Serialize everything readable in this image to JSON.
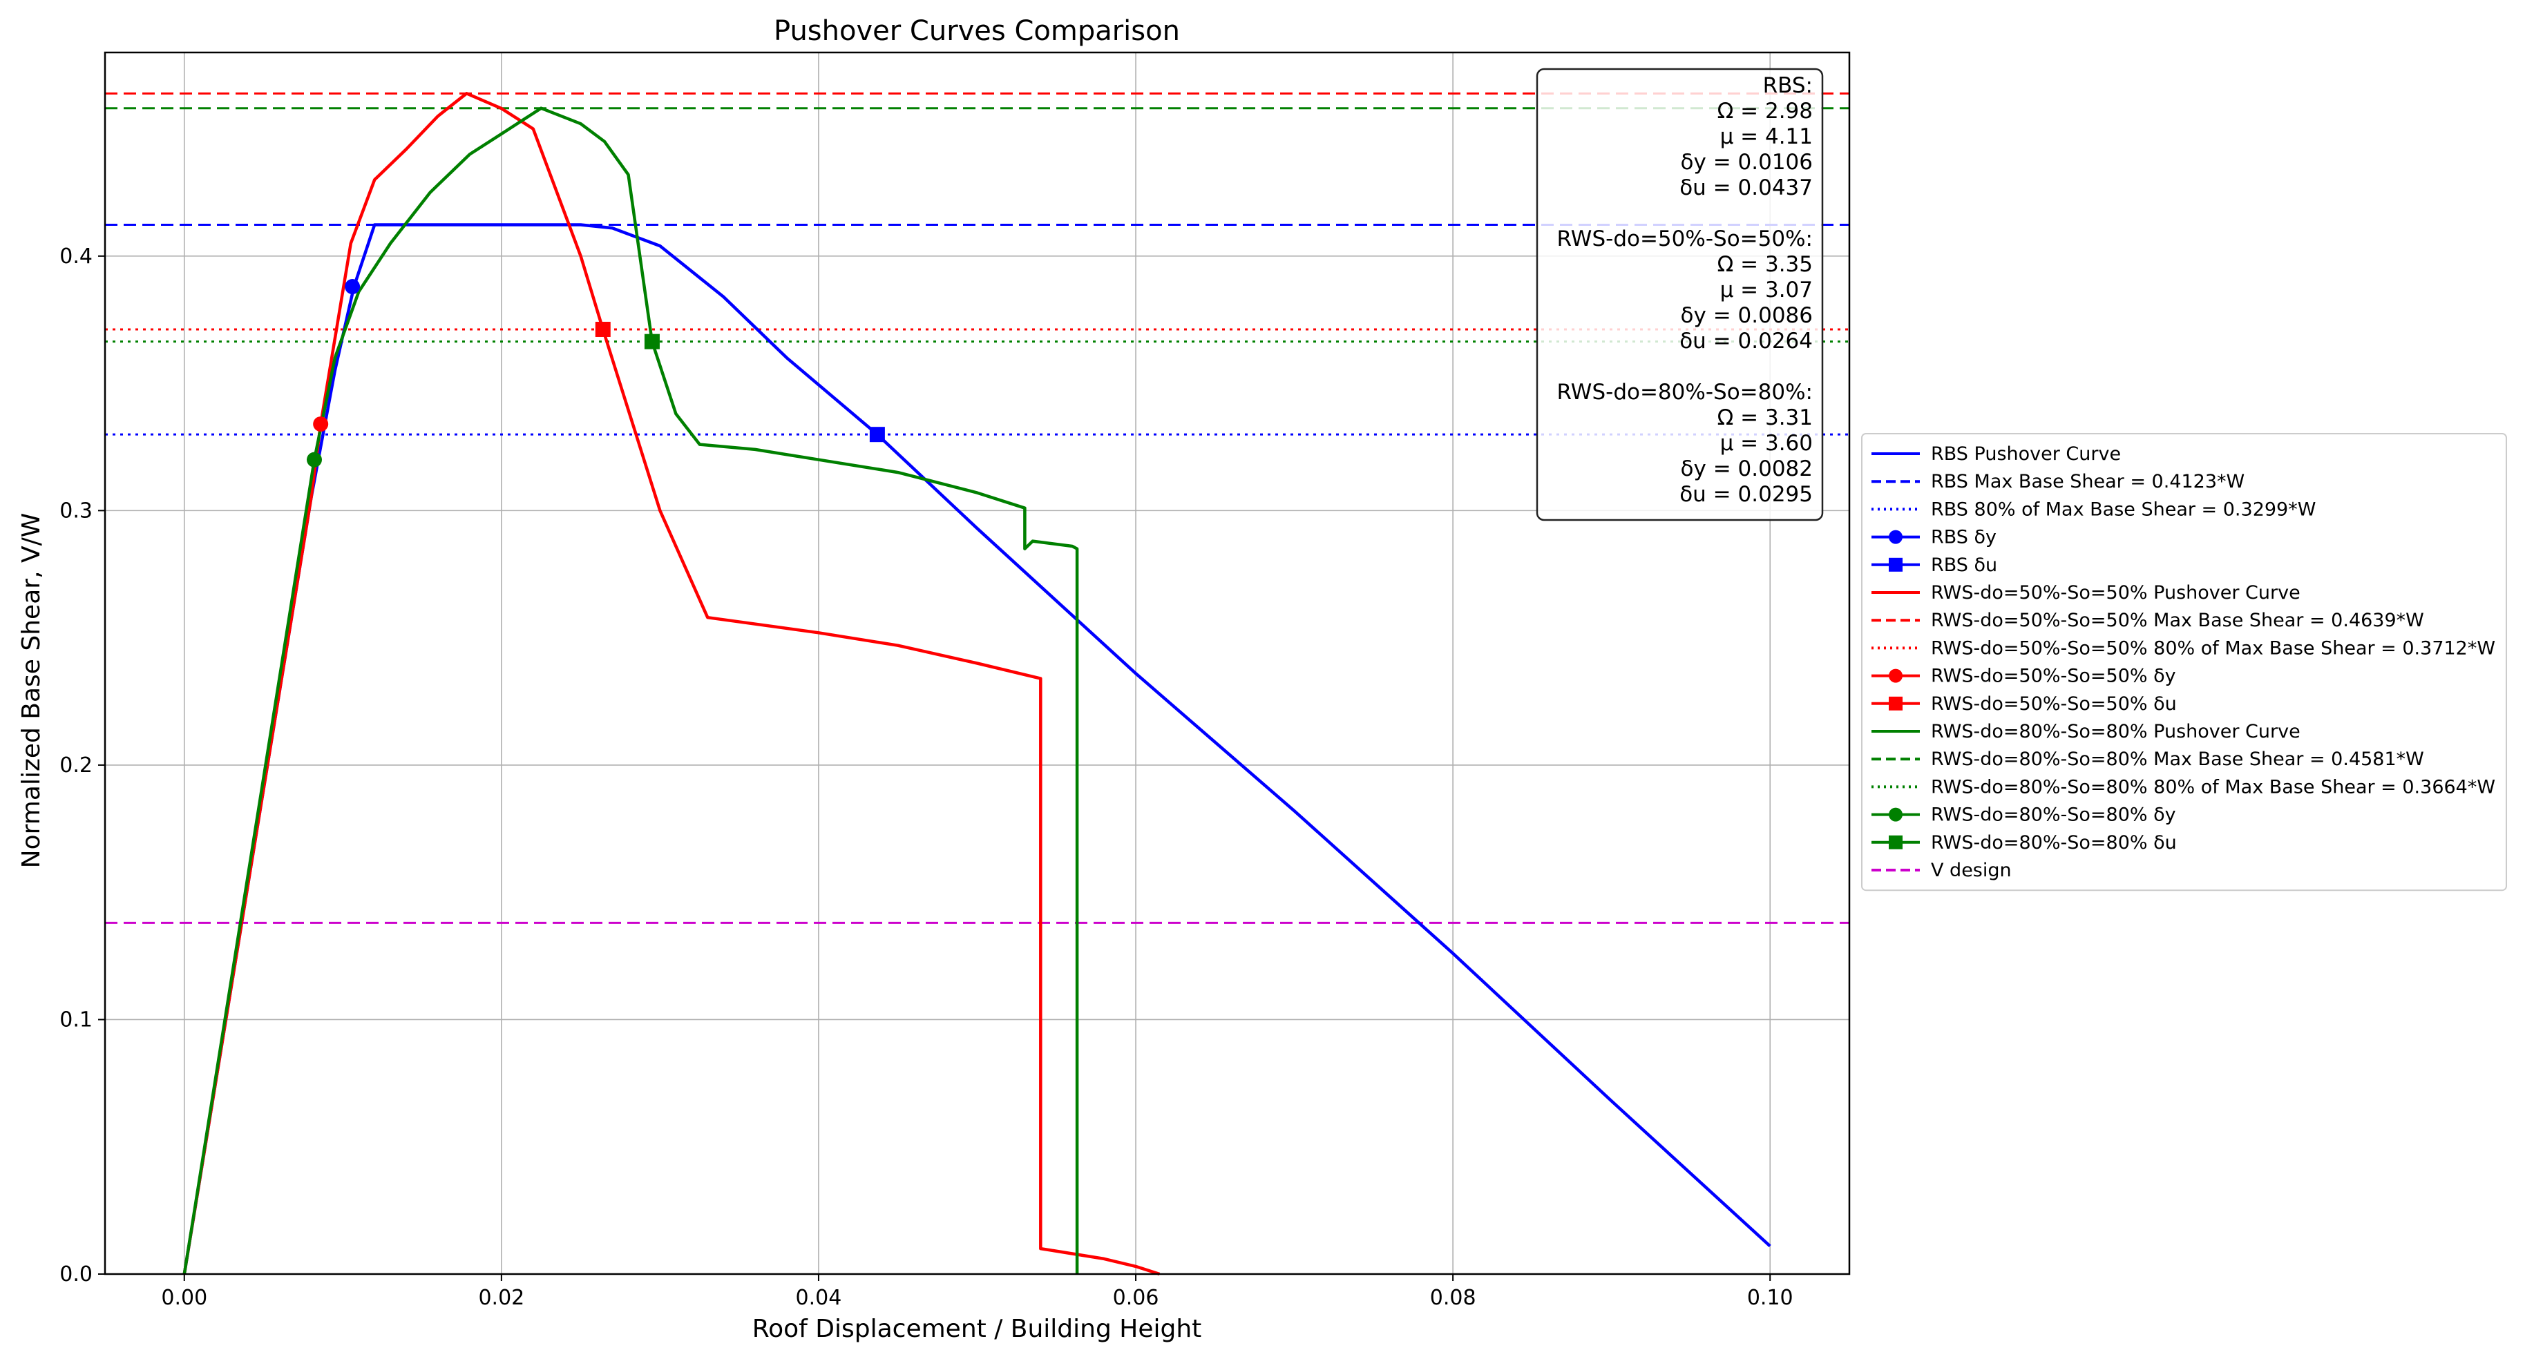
{
  "chart_data": {
    "type": "line",
    "title": "Pushover Curves Comparison",
    "xlabel": "Roof Displacement / Building Height",
    "ylabel": "Normalized Base Shear, V/W",
    "xlim": [
      -0.005,
      0.105
    ],
    "ylim": [
      0,
      0.48
    ],
    "xticks": [
      0.0,
      0.02,
      0.04,
      0.06,
      0.08,
      0.1
    ],
    "xtick_labels": [
      "0.00",
      "0.02",
      "0.04",
      "0.06",
      "0.08",
      "0.10"
    ],
    "yticks": [
      0.0,
      0.1,
      0.2,
      0.3,
      0.4
    ],
    "ytick_labels": [
      "0.0",
      "0.1",
      "0.2",
      "0.3",
      "0.4"
    ],
    "grid": true,
    "legend_placement": "right, outside plot",
    "series": [
      {
        "name": "RBS Pushover Curve",
        "color": "#0000ff",
        "points": [
          [
            0.0,
            0.0
          ],
          [
            0.008,
            0.305
          ],
          [
            0.0095,
            0.355
          ],
          [
            0.0107,
            0.388
          ],
          [
            0.012,
            0.4123
          ],
          [
            0.02,
            0.4123
          ],
          [
            0.025,
            0.4123
          ],
          [
            0.027,
            0.411
          ],
          [
            0.03,
            0.404
          ],
          [
            0.034,
            0.384
          ],
          [
            0.038,
            0.36
          ],
          [
            0.0437,
            0.3299
          ],
          [
            0.05,
            0.293
          ],
          [
            0.06,
            0.236
          ],
          [
            0.07,
            0.182
          ],
          [
            0.08,
            0.126
          ],
          [
            0.09,
            0.068
          ],
          [
            0.1,
            0.011
          ]
        ]
      },
      {
        "name": "RWS-do=50%-So=50% Pushover Curve",
        "color": "#ff0000",
        "points": [
          [
            0.0,
            0.0
          ],
          [
            0.008,
            0.305
          ],
          [
            0.0086,
            0.334
          ],
          [
            0.0105,
            0.405
          ],
          [
            0.012,
            0.43
          ],
          [
            0.014,
            0.442
          ],
          [
            0.016,
            0.455
          ],
          [
            0.0178,
            0.4639
          ],
          [
            0.02,
            0.458
          ],
          [
            0.022,
            0.45
          ],
          [
            0.025,
            0.4
          ],
          [
            0.0264,
            0.3712
          ],
          [
            0.03,
            0.3
          ],
          [
            0.033,
            0.258
          ],
          [
            0.04,
            0.252
          ],
          [
            0.045,
            0.247
          ],
          [
            0.05,
            0.24
          ],
          [
            0.054,
            0.234
          ],
          [
            0.054,
            0.01
          ],
          [
            0.056,
            0.008
          ],
          [
            0.058,
            0.006
          ],
          [
            0.06,
            0.003
          ],
          [
            0.0615,
            0.0
          ]
        ]
      },
      {
        "name": "RWS-do=80%-So=80% Pushover Curve",
        "color": "#008000",
        "points": [
          [
            0.0,
            0.0
          ],
          [
            0.0082,
            0.32
          ],
          [
            0.0095,
            0.36
          ],
          [
            0.011,
            0.386
          ],
          [
            0.013,
            0.405
          ],
          [
            0.0155,
            0.425
          ],
          [
            0.018,
            0.44
          ],
          [
            0.02,
            0.448
          ],
          [
            0.0225,
            0.4581
          ],
          [
            0.025,
            0.452
          ],
          [
            0.0265,
            0.445
          ],
          [
            0.0265,
            0.445
          ],
          [
            0.0265,
            0.445
          ],
          [
            0.0265,
            0.445
          ],
          [
            0.028,
            0.432
          ],
          [
            0.0295,
            0.3664
          ],
          [
            0.031,
            0.338
          ],
          [
            0.0325,
            0.326
          ],
          [
            0.036,
            0.324
          ],
          [
            0.04,
            0.32
          ],
          [
            0.045,
            0.315
          ],
          [
            0.05,
            0.307
          ],
          [
            0.053,
            0.301
          ],
          [
            0.053,
            0.285
          ],
          [
            0.0535,
            0.288
          ],
          [
            0.056,
            0.286
          ],
          [
            0.0563,
            0.285
          ],
          [
            0.0563,
            0.0
          ]
        ]
      }
    ],
    "hlines": [
      {
        "name": "RBS Max Base Shear = 0.4123*W",
        "y": 0.4123,
        "color": "#0000ff",
        "style": "dashed"
      },
      {
        "name": "RBS 80% of Max Base Shear = 0.3299*W",
        "y": 0.3299,
        "color": "#0000ff",
        "style": "dotted"
      },
      {
        "name": "RWS-do=50%-So=50% Max Base Shear = 0.4639*W",
        "y": 0.4639,
        "color": "#ff0000",
        "style": "dashed"
      },
      {
        "name": "RWS-do=50%-So=50% 80% of Max Base Shear = 0.3712*W",
        "y": 0.3712,
        "color": "#ff0000",
        "style": "dotted"
      },
      {
        "name": "RWS-do=80%-So=80% Max Base Shear = 0.4581*W",
        "y": 0.4581,
        "color": "#008000",
        "style": "dashed"
      },
      {
        "name": "RWS-do=80%-So=80% 80% of Max Base Shear = 0.3664*W",
        "y": 0.3664,
        "color": "#008000",
        "style": "dotted"
      },
      {
        "name": "V design",
        "y": 0.138,
        "color": "#cc00cc",
        "style": "dashed"
      }
    ],
    "markers": [
      {
        "name": "RBS δy",
        "x": 0.0106,
        "y": 0.388,
        "color": "#0000ff",
        "shape": "circle"
      },
      {
        "name": "RBS δu",
        "x": 0.0437,
        "y": 0.3299,
        "color": "#0000ff",
        "shape": "square"
      },
      {
        "name": "RWS-do=50%-So=50% δy",
        "x": 0.0086,
        "y": 0.334,
        "color": "#ff0000",
        "shape": "circle"
      },
      {
        "name": "RWS-do=50%-So=50% δu",
        "x": 0.0264,
        "y": 0.3712,
        "color": "#ff0000",
        "shape": "square"
      },
      {
        "name": "RWS-do=80%-So=80% δy",
        "x": 0.0082,
        "y": 0.32,
        "color": "#008000",
        "shape": "circle"
      },
      {
        "name": "RWS-do=80%-So=80% δu",
        "x": 0.0295,
        "y": 0.3664,
        "color": "#008000",
        "shape": "square"
      }
    ],
    "stats_box": [
      "RBS:",
      "Ω = 2.98",
      "μ = 4.11",
      "δy = 0.0106",
      "δu = 0.0437",
      "",
      "RWS-do=50%-So=50%:",
      "Ω = 3.35",
      "μ = 3.07",
      "δy = 0.0086",
      "δu = 0.0264",
      "",
      "RWS-do=80%-So=80%:",
      "Ω = 3.31",
      "μ = 3.60",
      "δy = 0.0082",
      "δu = 0.0295"
    ],
    "legend": [
      {
        "label": "RBS Pushover Curve",
        "color": "#0000ff",
        "style": "solid",
        "marker": "none"
      },
      {
        "label": "RBS Max Base Shear = 0.4123*W",
        "color": "#0000ff",
        "style": "dashed",
        "marker": "none"
      },
      {
        "label": "RBS 80% of Max Base Shear = 0.3299*W",
        "color": "#0000ff",
        "style": "dotted",
        "marker": "none"
      },
      {
        "label": "RBS δy",
        "color": "#0000ff",
        "style": "solid",
        "marker": "circle"
      },
      {
        "label": "RBS δu",
        "color": "#0000ff",
        "style": "solid",
        "marker": "square"
      },
      {
        "label": "RWS-do=50%-So=50% Pushover Curve",
        "color": "#ff0000",
        "style": "solid",
        "marker": "none"
      },
      {
        "label": "RWS-do=50%-So=50% Max Base Shear = 0.4639*W",
        "color": "#ff0000",
        "style": "dashed",
        "marker": "none"
      },
      {
        "label": "RWS-do=50%-So=50% 80% of Max Base Shear = 0.3712*W",
        "color": "#ff0000",
        "style": "dotted",
        "marker": "none"
      },
      {
        "label": "RWS-do=50%-So=50% δy",
        "color": "#ff0000",
        "style": "solid",
        "marker": "circle"
      },
      {
        "label": "RWS-do=50%-So=50% δu",
        "color": "#ff0000",
        "style": "solid",
        "marker": "square"
      },
      {
        "label": "RWS-do=80%-So=80% Pushover Curve",
        "color": "#008000",
        "style": "solid",
        "marker": "none"
      },
      {
        "label": "RWS-do=80%-So=80% Max Base Shear = 0.4581*W",
        "color": "#008000",
        "style": "dashed",
        "marker": "none"
      },
      {
        "label": "RWS-do=80%-So=80% 80% of Max Base Shear = 0.3664*W",
        "color": "#008000",
        "style": "dotted",
        "marker": "none"
      },
      {
        "label": "RWS-do=80%-So=80% δy",
        "color": "#008000",
        "style": "solid",
        "marker": "circle"
      },
      {
        "label": "RWS-do=80%-So=80% δu",
        "color": "#008000",
        "style": "solid",
        "marker": "square"
      },
      {
        "label": "V design",
        "color": "#cc00cc",
        "style": "dashed",
        "marker": "none"
      }
    ]
  }
}
